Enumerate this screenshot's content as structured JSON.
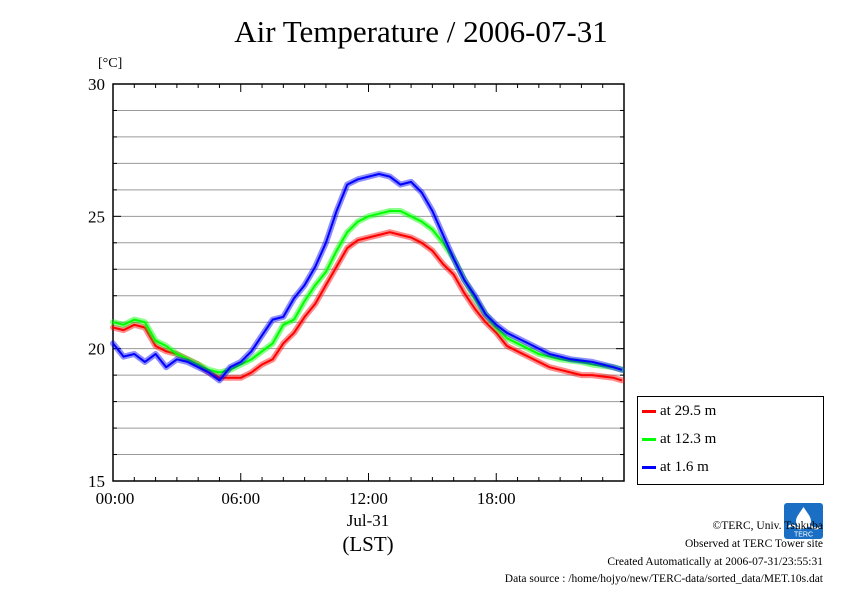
{
  "title": "Air Temperature / 2006-07-31",
  "chart_data": {
    "type": "line",
    "ylabel": "[°C]",
    "xlabel": "(LST)",
    "x_date_label": "Jul-31",
    "ylim": [
      15,
      30
    ],
    "xlim": [
      0,
      24
    ],
    "y_ticks": [
      15,
      20,
      25,
      30
    ],
    "y_tick_labels": [
      "15",
      "20",
      "25",
      "30"
    ],
    "x_ticks": [
      0,
      6,
      12,
      18
    ],
    "x_tick_labels": [
      "00:00",
      "06:00",
      "12:00",
      "18:00"
    ],
    "grid": "horizontal",
    "legend_position": "bottom-right",
    "x_hours": [
      0,
      0.5,
      1,
      1.5,
      2,
      2.5,
      3,
      3.5,
      4,
      4.5,
      5,
      5.5,
      6,
      6.5,
      7,
      7.5,
      8,
      8.5,
      9,
      9.5,
      10,
      10.5,
      11,
      11.5,
      12,
      12.5,
      13,
      13.5,
      14,
      14.5,
      15,
      15.5,
      16,
      16.5,
      17,
      17.5,
      18,
      18.5,
      19,
      19.5,
      20,
      20.5,
      21,
      21.5,
      22,
      22.5,
      23,
      23.5,
      23.9
    ],
    "series": [
      {
        "name": "at 29.5 m",
        "color": "#ff0000",
        "values": [
          20.8,
          20.7,
          20.9,
          20.8,
          20.1,
          19.9,
          19.8,
          19.6,
          19.4,
          19.1,
          18.9,
          18.9,
          18.9,
          19.1,
          19.4,
          19.6,
          20.2,
          20.6,
          21.2,
          21.7,
          22.4,
          23.1,
          23.8,
          24.1,
          24.2,
          24.3,
          24.4,
          24.3,
          24.2,
          24.0,
          23.7,
          23.2,
          22.8,
          22.1,
          21.5,
          21.0,
          20.6,
          20.1,
          19.9,
          19.7,
          19.5,
          19.3,
          19.2,
          19.1,
          19.0,
          19.0,
          18.95,
          18.9,
          18.8
        ]
      },
      {
        "name": "at 12.3 m",
        "color": "#00ff00",
        "values": [
          21.0,
          20.9,
          21.1,
          21.0,
          20.3,
          20.1,
          19.8,
          19.6,
          19.4,
          19.2,
          19.1,
          19.2,
          19.4,
          19.6,
          19.9,
          20.2,
          20.9,
          21.1,
          21.8,
          22.4,
          22.9,
          23.7,
          24.4,
          24.8,
          25.0,
          25.1,
          25.2,
          25.2,
          25.0,
          24.8,
          24.5,
          24.0,
          23.4,
          22.6,
          21.9,
          21.3,
          20.8,
          20.4,
          20.2,
          20.0,
          19.8,
          19.7,
          19.6,
          19.55,
          19.5,
          19.4,
          19.35,
          19.3,
          19.2
        ]
      },
      {
        "name": "at 1.6 m",
        "color": "#0000ff",
        "values": [
          20.2,
          19.7,
          19.8,
          19.5,
          19.8,
          19.3,
          19.6,
          19.5,
          19.3,
          19.1,
          18.8,
          19.3,
          19.5,
          19.9,
          20.5,
          21.1,
          21.2,
          21.9,
          22.4,
          23.1,
          24.0,
          25.2,
          26.2,
          26.4,
          26.5,
          26.6,
          26.5,
          26.2,
          26.3,
          25.9,
          25.2,
          24.3,
          23.4,
          22.6,
          22.0,
          21.3,
          20.9,
          20.6,
          20.4,
          20.2,
          20.0,
          19.8,
          19.7,
          19.6,
          19.55,
          19.5,
          19.4,
          19.3,
          19.2
        ]
      }
    ]
  },
  "legend": [
    {
      "label": "at 29.5 m",
      "color": "#ff0000"
    },
    {
      "label": "at 12.3 m",
      "color": "#00ff00"
    },
    {
      "label": "at 1.6 m",
      "color": "#0000ff"
    }
  ],
  "footer": {
    "copyright": "©TERC, Univ. Tsukuba",
    "observed": "Observed at TERC Tower site",
    "created": "Created Automatically at 2006-07-31/23:55:31",
    "source": "Data source : /home/hojyo/new/TERC-data/sorted_data/MET.10s.dat",
    "logo_text": "TERC"
  }
}
